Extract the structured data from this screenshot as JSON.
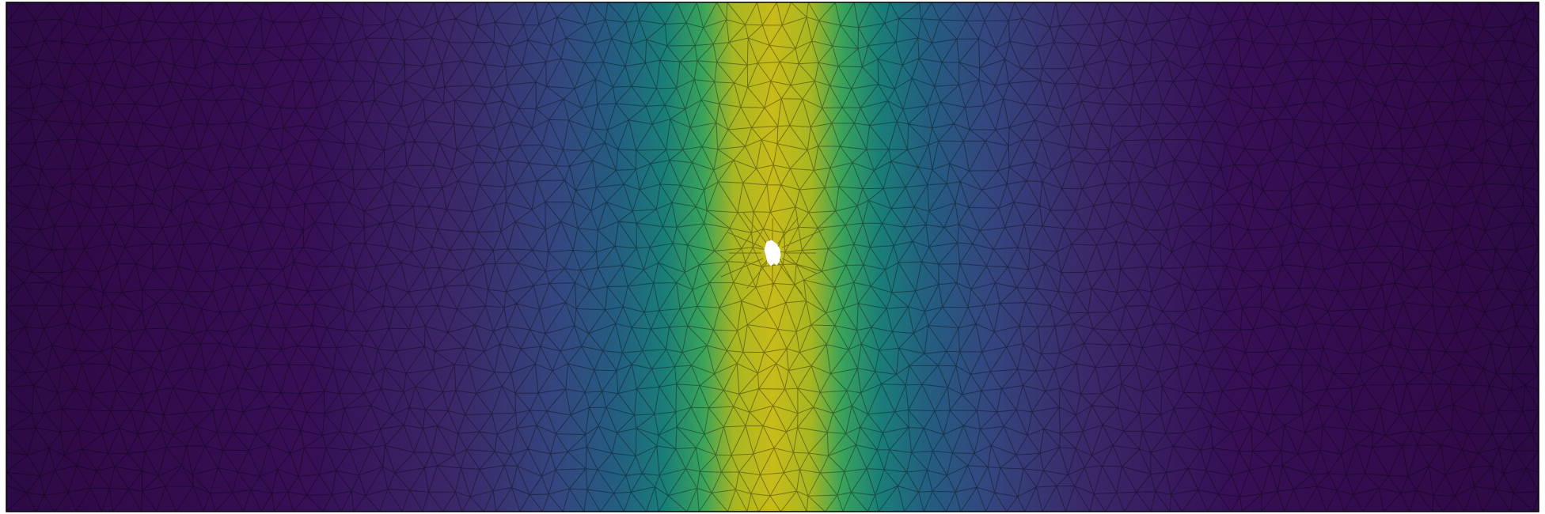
{
  "figure": {
    "type": "finite-element-mesh-field",
    "mesh": "triangular",
    "colormap": "viridis",
    "field_profile": "gaussian-band-vertical-center",
    "hole": "small-irregular-void-at-center",
    "colors": {
      "low": "#2e0a4a",
      "low_mid": "#3b3f80",
      "mid": "#1f7f7a",
      "high_mid": "#3aa35a",
      "high": "#c9ba1a",
      "mesh_edges": "#000000",
      "frame": "#000000",
      "hole": "#ffffff"
    }
  }
}
